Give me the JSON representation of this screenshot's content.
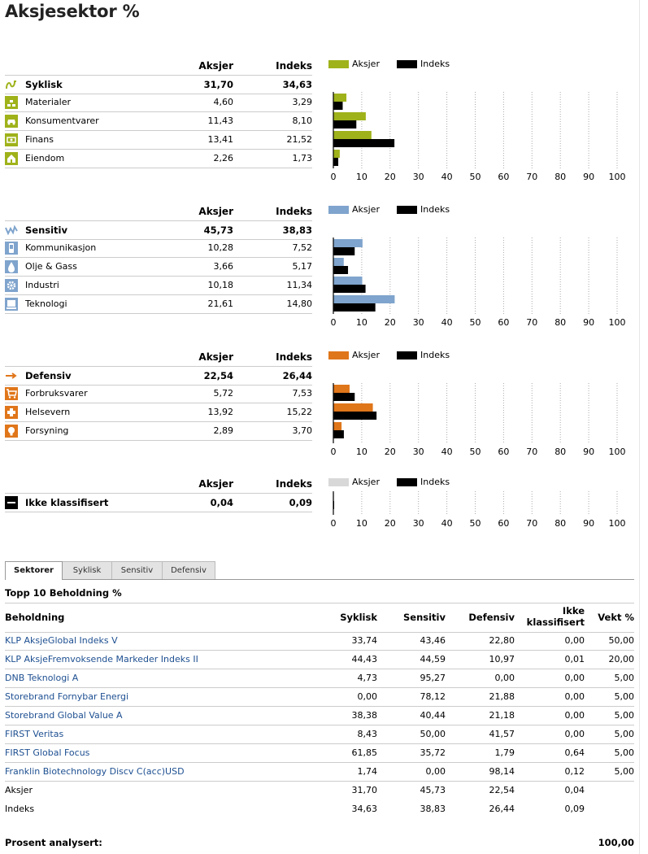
{
  "title": "Aksjesektor %",
  "columns": {
    "aksjer": "Aksjer",
    "indeks": "Indeks"
  },
  "legend": {
    "aksjer": "Aksjer",
    "indeks": "Indeks"
  },
  "colors": {
    "syklisk": "#9fb21a",
    "sensitiv": "#7fa4cd",
    "defensiv": "#e0761a",
    "ikke": "#d8d8d8",
    "indeks": "#000000"
  },
  "groups": [
    {
      "key": "syklisk",
      "main": {
        "label": "Syklisk",
        "aksjer": "31,70",
        "indeks": "34,63",
        "icon": "syklisk-icon"
      },
      "rows": [
        {
          "label": "Materialer",
          "aksjer": "4,60",
          "indeks": "3,29",
          "icon": "materialer-icon"
        },
        {
          "label": "Konsumentvarer",
          "aksjer": "11,43",
          "indeks": "8,10",
          "icon": "konsumentvarer-icon"
        },
        {
          "label": "Finans",
          "aksjer": "13,41",
          "indeks": "21,52",
          "icon": "finans-icon"
        },
        {
          "label": "Eiendom",
          "aksjer": "2,26",
          "indeks": "1,73",
          "icon": "eiendom-icon"
        }
      ]
    },
    {
      "key": "sensitiv",
      "main": {
        "label": "Sensitiv",
        "aksjer": "45,73",
        "indeks": "38,83",
        "icon": "sensitiv-icon"
      },
      "rows": [
        {
          "label": "Kommunikasjon",
          "aksjer": "10,28",
          "indeks": "7,52",
          "icon": "kommunikasjon-icon"
        },
        {
          "label": "Olje & Gass",
          "aksjer": "3,66",
          "indeks": "5,17",
          "icon": "olje-gass-icon"
        },
        {
          "label": "Industri",
          "aksjer": "10,18",
          "indeks": "11,34",
          "icon": "industri-icon"
        },
        {
          "label": "Teknologi",
          "aksjer": "21,61",
          "indeks": "14,80",
          "icon": "teknologi-icon"
        }
      ]
    },
    {
      "key": "defensiv",
      "main": {
        "label": "Defensiv",
        "aksjer": "22,54",
        "indeks": "26,44",
        "icon": "defensiv-icon"
      },
      "rows": [
        {
          "label": "Forbruksvarer",
          "aksjer": "5,72",
          "indeks": "7,53",
          "icon": "forbruksvarer-icon"
        },
        {
          "label": "Helsevern",
          "aksjer": "13,92",
          "indeks": "15,22",
          "icon": "helsevern-icon"
        },
        {
          "label": "Forsyning",
          "aksjer": "2,89",
          "indeks": "3,70",
          "icon": "forsyning-icon"
        }
      ]
    },
    {
      "key": "ikke",
      "main": {
        "label": "Ikke klassifisert",
        "aksjer": "0,04",
        "indeks": "0,09",
        "icon": "ikke-klassifisert-icon"
      },
      "rows": []
    }
  ],
  "chart_data": [
    {
      "type": "bar",
      "orientation": "horizontal",
      "xlim": [
        0,
        100
      ],
      "xticks": [
        0,
        10,
        20,
        30,
        40,
        50,
        60,
        70,
        80,
        90,
        100
      ],
      "categories": [
        "Materialer",
        "Konsumentvarer",
        "Finans",
        "Eiendom"
      ],
      "series": [
        {
          "name": "Aksjer",
          "values": [
            4.6,
            11.43,
            13.41,
            2.26
          ]
        },
        {
          "name": "Indeks",
          "values": [
            3.29,
            8.1,
            21.52,
            1.73
          ]
        }
      ]
    },
    {
      "type": "bar",
      "orientation": "horizontal",
      "xlim": [
        0,
        100
      ],
      "xticks": [
        0,
        10,
        20,
        30,
        40,
        50,
        60,
        70,
        80,
        90,
        100
      ],
      "categories": [
        "Kommunikasjon",
        "Olje & Gass",
        "Industri",
        "Teknologi"
      ],
      "series": [
        {
          "name": "Aksjer",
          "values": [
            10.28,
            3.66,
            10.18,
            21.61
          ]
        },
        {
          "name": "Indeks",
          "values": [
            7.52,
            5.17,
            11.34,
            14.8
          ]
        }
      ]
    },
    {
      "type": "bar",
      "orientation": "horizontal",
      "xlim": [
        0,
        100
      ],
      "xticks": [
        0,
        10,
        20,
        30,
        40,
        50,
        60,
        70,
        80,
        90,
        100
      ],
      "categories": [
        "Forbruksvarer",
        "Helsevern",
        "Forsyning"
      ],
      "series": [
        {
          "name": "Aksjer",
          "values": [
            5.72,
            13.92,
            2.89
          ]
        },
        {
          "name": "Indeks",
          "values": [
            7.53,
            15.22,
            3.7
          ]
        }
      ]
    },
    {
      "type": "bar",
      "orientation": "horizontal",
      "xlim": [
        0,
        100
      ],
      "xticks": [
        0,
        10,
        20,
        30,
        40,
        50,
        60,
        70,
        80,
        90,
        100
      ],
      "categories": [
        "Ikke klassifisert"
      ],
      "series": [
        {
          "name": "Aksjer",
          "values": [
            0.04
          ]
        },
        {
          "name": "Indeks",
          "values": [
            0.09
          ]
        }
      ]
    }
  ],
  "tabs": [
    {
      "label": "Sektorer",
      "active": true
    },
    {
      "label": "Syklisk",
      "active": false
    },
    {
      "label": "Sensitiv",
      "active": false
    },
    {
      "label": "Defensiv",
      "active": false
    }
  ],
  "holdings": {
    "title": "Topp 10 Beholdning %",
    "headers": {
      "name": "Beholdning",
      "syklisk": "Syklisk",
      "sensitiv": "Sensitiv",
      "defensiv": "Defensiv",
      "ikke_1": "Ikke",
      "ikke_2": "klassifisert",
      "vekt": "Vekt %"
    },
    "rows": [
      {
        "name": "KLP AksjeGlobal Indeks V",
        "syklisk": "33,74",
        "sensitiv": "43,46",
        "defensiv": "22,80",
        "ikke": "0,00",
        "vekt": "50,00"
      },
      {
        "name": "KLP AksjeFremvoksende Markeder Indeks II",
        "syklisk": "44,43",
        "sensitiv": "44,59",
        "defensiv": "10,97",
        "ikke": "0,01",
        "vekt": "20,00"
      },
      {
        "name": "DNB Teknologi A",
        "syklisk": "4,73",
        "sensitiv": "95,27",
        "defensiv": "0,00",
        "ikke": "0,00",
        "vekt": "5,00"
      },
      {
        "name": "Storebrand Fornybar Energi",
        "syklisk": "0,00",
        "sensitiv": "78,12",
        "defensiv": "21,88",
        "ikke": "0,00",
        "vekt": "5,00"
      },
      {
        "name": "Storebrand Global Value A",
        "syklisk": "38,38",
        "sensitiv": "40,44",
        "defensiv": "21,18",
        "ikke": "0,00",
        "vekt": "5,00"
      },
      {
        "name": "FIRST Veritas",
        "syklisk": "8,43",
        "sensitiv": "50,00",
        "defensiv": "41,57",
        "ikke": "0,00",
        "vekt": "5,00"
      },
      {
        "name": "FIRST Global Focus",
        "syklisk": "61,85",
        "sensitiv": "35,72",
        "defensiv": "1,79",
        "ikke": "0,64",
        "vekt": "5,00"
      },
      {
        "name": "Franklin Biotechnology Discv C(acc)USD",
        "syklisk": "1,74",
        "sensitiv": "0,00",
        "defensiv": "98,14",
        "ikke": "0,12",
        "vekt": "5,00"
      }
    ],
    "summary": [
      {
        "name": "Aksjer",
        "syklisk": "31,70",
        "sensitiv": "45,73",
        "defensiv": "22,54",
        "ikke": "0,04",
        "vekt": ""
      },
      {
        "name": "Indeks",
        "syklisk": "34,63",
        "sensitiv": "38,83",
        "defensiv": "26,44",
        "ikke": "0,09",
        "vekt": ""
      }
    ]
  },
  "footer": {
    "label": "Prosent analysert:",
    "value": "100,00"
  }
}
